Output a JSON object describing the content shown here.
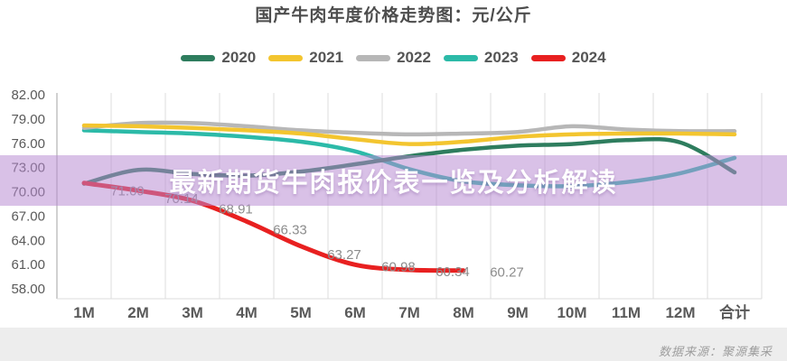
{
  "title": "国产牛肉年度价格走势图：元/公斤",
  "banner": {
    "text": "最新期货牛肉报价表一览及分析解读",
    "bg_color": "#b688d1"
  },
  "footer": {
    "source": "数据来源：聚源集采"
  },
  "chart_data": {
    "type": "line",
    "title": "国产牛肉年度价格走势图：元/公斤",
    "unit": "元/公斤",
    "categories": [
      "1M",
      "2M",
      "3M",
      "4M",
      "5M",
      "6M",
      "7M",
      "8M",
      "9M",
      "10M",
      "11M",
      "12M",
      "合计"
    ],
    "y_ticks": [
      "82.00",
      "79.00",
      "76.00",
      "73.00",
      "70.00",
      "67.00",
      "64.00",
      "61.00",
      "58.00"
    ],
    "ylim": [
      58,
      82
    ],
    "grid": "vertical",
    "legend_position": "top",
    "series": [
      {
        "name": "2020",
        "color": "#2e7d5e",
        "values": [
          71.0,
          72.7,
          72.2,
          72.0,
          72.5,
          73.4,
          74.4,
          75.2,
          75.7,
          75.9,
          76.4,
          76.1,
          72.4
        ]
      },
      {
        "name": "2021",
        "color": "#f3c52f",
        "values": [
          78.2,
          78.1,
          77.9,
          77.6,
          77.2,
          76.5,
          75.9,
          76.2,
          76.8,
          77.1,
          77.2,
          77.2,
          77.1
        ]
      },
      {
        "name": "2022",
        "color": "#b7b7b7",
        "values": [
          77.9,
          78.5,
          78.5,
          78.1,
          77.6,
          77.3,
          77.1,
          77.2,
          77.4,
          78.1,
          77.7,
          77.5,
          77.5
        ]
      },
      {
        "name": "2023",
        "color": "#2cbaa8",
        "values": [
          77.6,
          77.4,
          77.2,
          76.8,
          76.2,
          75.0,
          72.8,
          71.3,
          70.8,
          70.7,
          71.2,
          72.3,
          74.2
        ]
      },
      {
        "name": "2024",
        "color": "#e82020",
        "values": [
          71.09,
          70.14,
          68.91,
          66.33,
          63.27,
          60.98,
          60.34,
          60.27
        ],
        "data_labels": [
          "71.09",
          "70.14",
          "68.91",
          "66.33",
          "63.27",
          "60.98",
          "60.34",
          "60.27"
        ]
      }
    ]
  }
}
